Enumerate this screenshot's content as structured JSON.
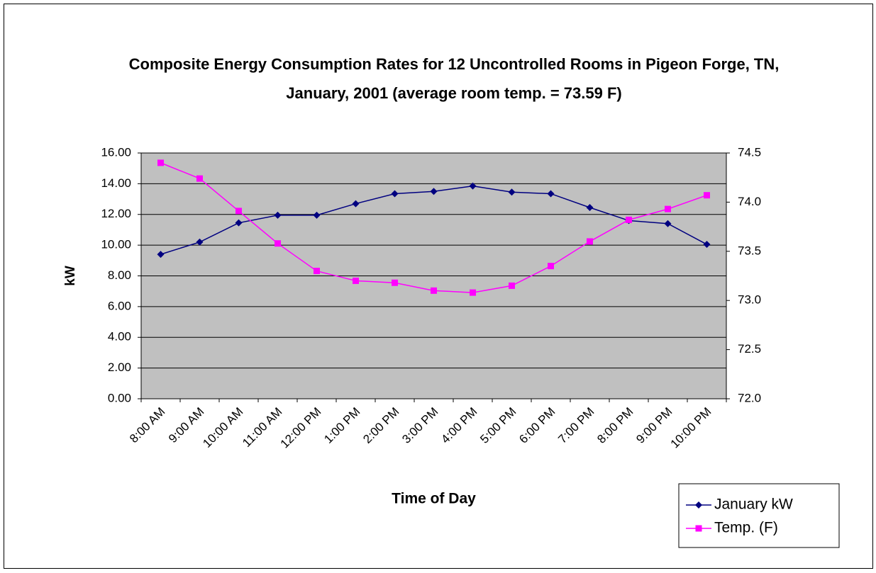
{
  "chart_data": {
    "type": "line",
    "title": "Composite Energy Consumption Rates for 12 Uncontrolled Rooms in Pigeon Forge, TN, January, 2001 (average room temp. = 73.59 F)",
    "x_label": "Time of Day",
    "y_label": "kW",
    "categories": [
      "8:00 AM",
      "9:00 AM",
      "10:00 AM",
      "11:00 AM",
      "12:00 PM",
      "1:00 PM",
      "2:00 PM",
      "3:00 PM",
      "4:00 PM",
      "5:00 PM",
      "6:00 PM",
      "7:00 PM",
      "8:00 PM",
      "9:00 PM",
      "10:00 PM"
    ],
    "series": [
      {
        "name": "January kW",
        "color": "#000080",
        "marker": "diamond",
        "values": [
          9.4,
          10.2,
          11.45,
          11.95,
          11.95,
          12.7,
          13.35,
          13.5,
          13.85,
          13.45,
          13.35,
          12.45,
          11.6,
          11.4,
          10.05
        ]
      },
      {
        "name": "Temp. (F)",
        "color": "#ff00ff",
        "marker": "square",
        "axis": "y2",
        "values": [
          74.4,
          74.24,
          73.91,
          73.58,
          73.3,
          73.2,
          73.18,
          73.1,
          73.08,
          73.15,
          73.35,
          73.6,
          73.82,
          73.93,
          74.07
        ]
      }
    ],
    "ylim": [
      0,
      16
    ],
    "yticks": [
      {
        "value": 0,
        "label": "0.00"
      },
      {
        "value": 2,
        "label": "2.00"
      },
      {
        "value": 4,
        "label": "4.00"
      },
      {
        "value": 6,
        "label": "6.00"
      },
      {
        "value": 8,
        "label": "8.00"
      },
      {
        "value": 10,
        "label": "10.00"
      },
      {
        "value": 12,
        "label": "12.00"
      },
      {
        "value": 14,
        "label": "14.00"
      },
      {
        "value": 16,
        "label": "16.00"
      }
    ],
    "y2lim": [
      72,
      74.5
    ],
    "y2ticks": [
      {
        "value": 72,
        "label": "72.0"
      },
      72.5,
      {
        "value": 73,
        "label": "73.0"
      },
      73.5,
      {
        "value": 74,
        "label": "74.0"
      },
      74.5
    ],
    "grid": true,
    "plot_background": "#c0c0c0",
    "legend": "bottom-right"
  }
}
